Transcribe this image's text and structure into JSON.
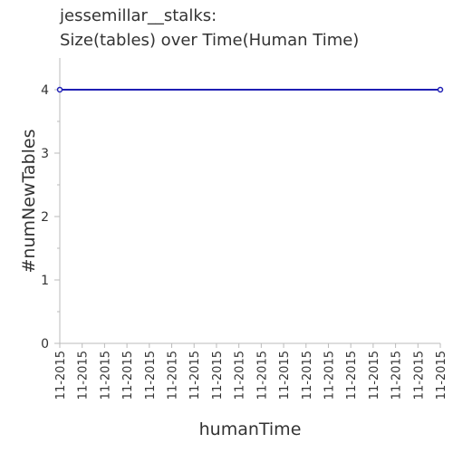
{
  "chart_data": {
    "type": "line",
    "title_lines": [
      "jessemillar__stalks:",
      "Size(tables) over Time(Human Time)"
    ],
    "xlabel": "humanTime",
    "ylabel": "#numNewTables",
    "x_tick_labels": [
      "11-2015",
      "11-2015",
      "11-2015",
      "11-2015",
      "11-2015",
      "11-2015",
      "11-2015",
      "11-2015",
      "11-2015",
      "11-2015",
      "11-2015",
      "11-2015",
      "11-2015",
      "11-2015",
      "11-2015",
      "11-2015",
      "11-2015",
      "11-2015"
    ],
    "y_ticks": [
      0,
      1,
      2,
      3,
      4
    ],
    "ylim": [
      0,
      4.5
    ],
    "x": [
      0,
      1
    ],
    "series": [
      {
        "values": [
          4,
          4
        ],
        "color": "#1f1fb4"
      }
    ],
    "grid": false
  }
}
